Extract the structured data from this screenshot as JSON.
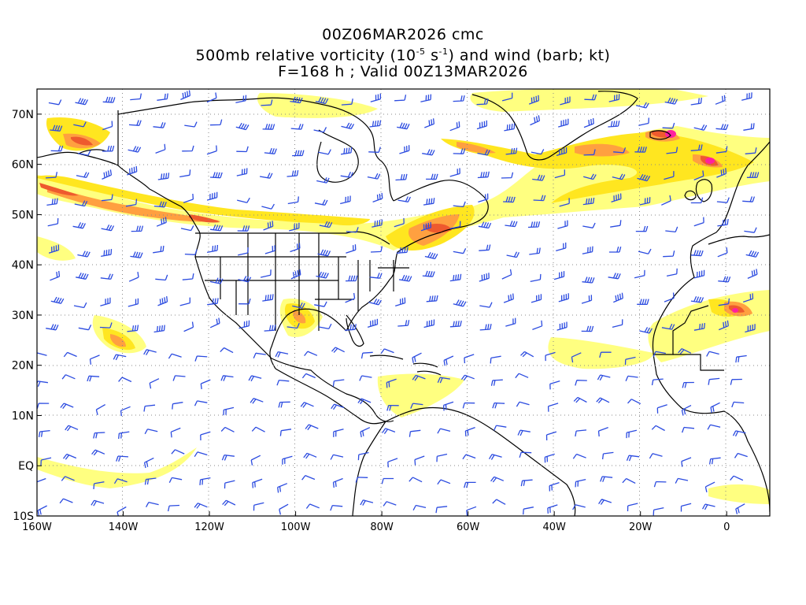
{
  "titles": {
    "line1": "00Z06MAR2026 cmc",
    "line2_prefix": "500mb relative vorticity (10",
    "line2_exp1": "-5",
    "line2_mid": " s",
    "line2_exp2": "-1",
    "line2_suffix": ") and wind (barb; kt)",
    "line3": "F=168 h ; Valid 00Z13MAR2026"
  },
  "axes": {
    "lon_ticks": [
      "160W",
      "140W",
      "120W",
      "100W",
      "80W",
      "60W",
      "40W",
      "20W",
      "0"
    ],
    "lon_values": [
      -160,
      -140,
      -120,
      -100,
      -80,
      -60,
      -40,
      -20,
      0
    ],
    "lat_ticks": [
      "70N",
      "60N",
      "50N",
      "40N",
      "30N",
      "20N",
      "10N",
      "EQ",
      "10S"
    ],
    "lat_values": [
      70,
      60,
      50,
      40,
      30,
      20,
      10,
      0,
      -10
    ],
    "lon_range": [
      -160,
      10
    ],
    "lat_range": [
      -10,
      75
    ],
    "grid": "dotted"
  },
  "colors": {
    "shade_light": "#ffff80",
    "shade_yellow": "#ffe620",
    "shade_orange": "#ffa040",
    "shade_red": "#ee5a2e",
    "shade_max": "#ff20a0",
    "barb": "#2b4be0",
    "coast": "#000000",
    "grid": "#888888"
  }
}
